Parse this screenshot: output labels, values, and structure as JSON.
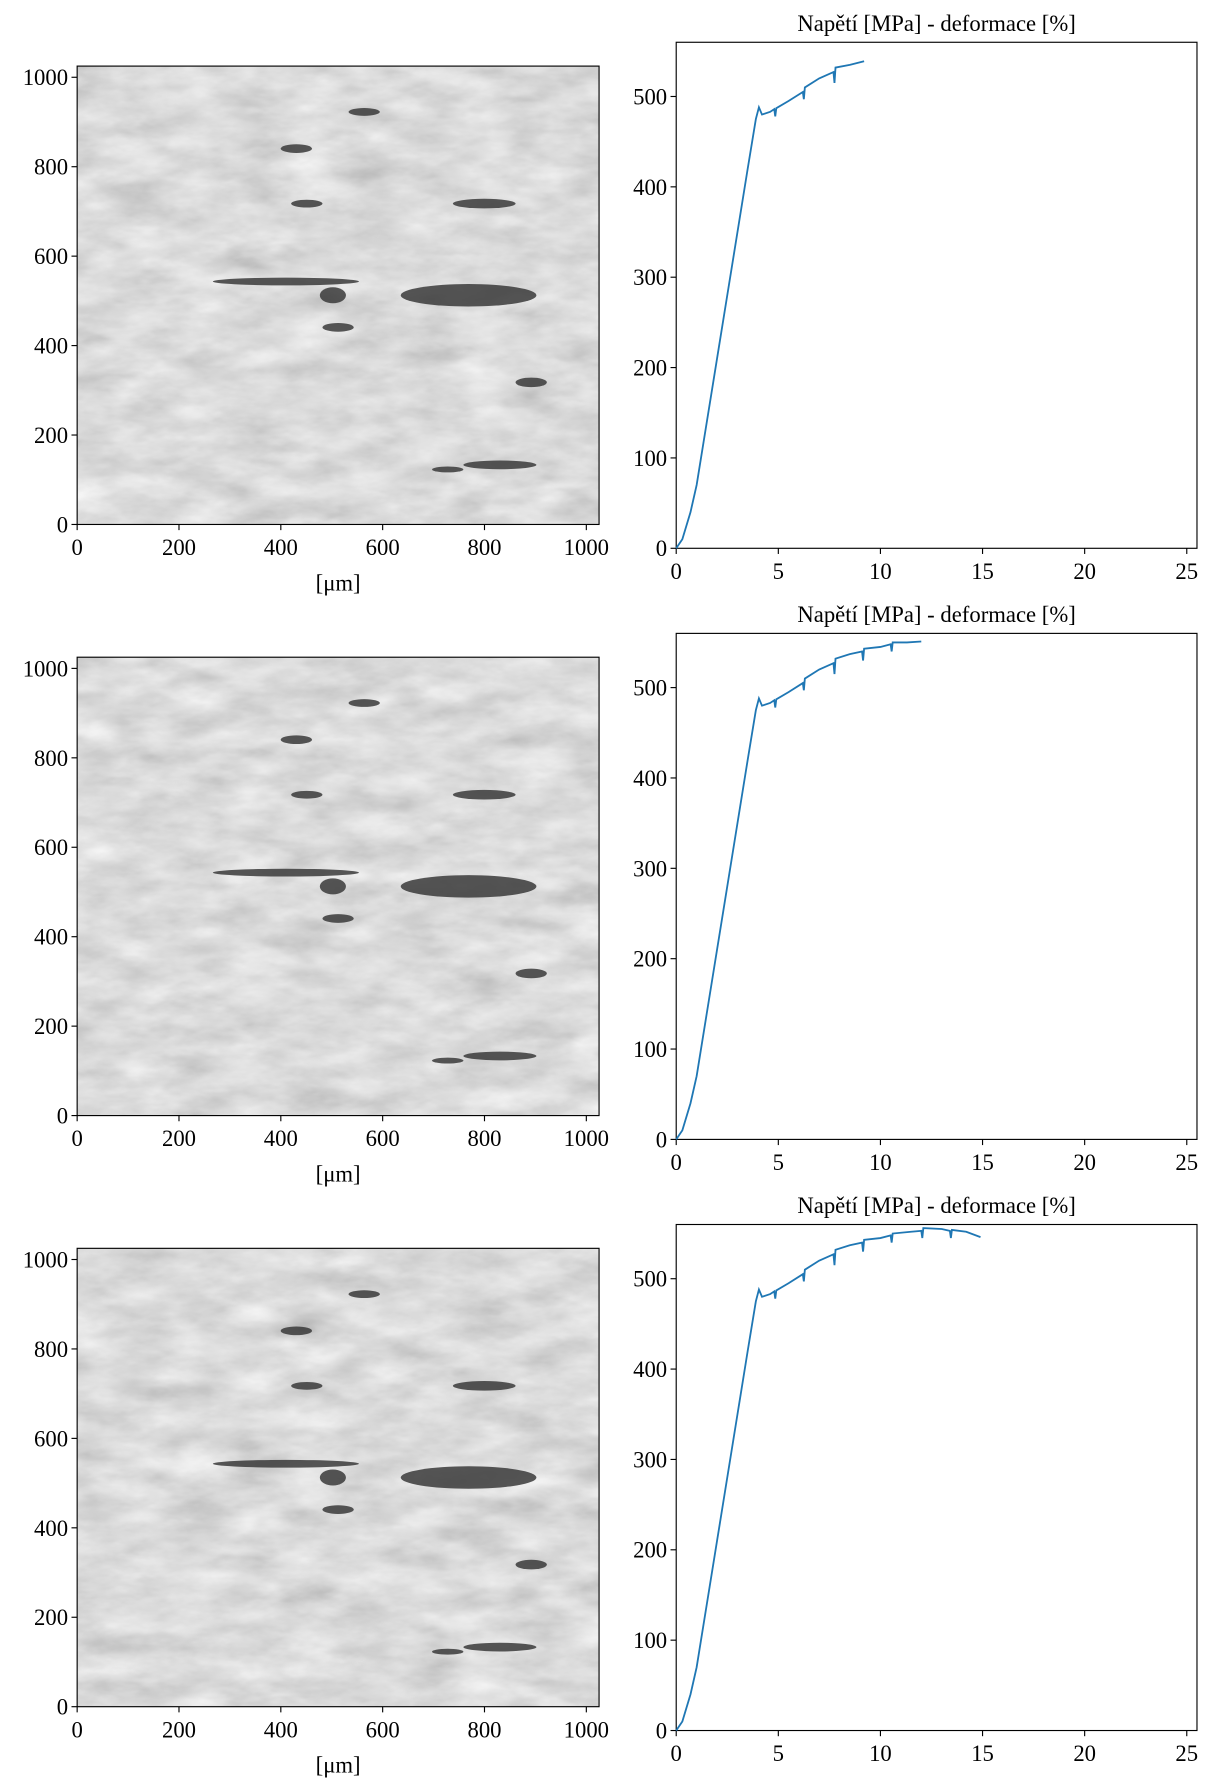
{
  "chart_data": [
    {
      "type": "image",
      "xlabel": "[μm]",
      "xlim": [
        0,
        1025
      ],
      "ylim": [
        0,
        1025
      ],
      "xticks": [
        0,
        200,
        400,
        600,
        800,
        1000
      ],
      "yticks": [
        0,
        200,
        400,
        600,
        800,
        1000
      ]
    },
    {
      "type": "line",
      "title": "Napětí [MPa] - deformace [%]",
      "x": [
        0,
        0.3,
        0.7,
        1,
        1.5,
        2,
        2.5,
        3,
        3.5,
        3.9,
        4.05,
        4.2,
        4.6,
        4.8,
        4.85,
        4.9,
        5.5,
        6.2,
        6.25,
        6.3,
        7,
        7.7,
        7.75,
        7.8,
        8.5,
        9.2
      ],
      "series": [
        {
          "color": "#1f77b4",
          "values": [
            0,
            10,
            40,
            70,
            140,
            210,
            280,
            350,
            420,
            475,
            488,
            480,
            483,
            486,
            478,
            487,
            495,
            505,
            497,
            510,
            520,
            527,
            515,
            532,
            535,
            539
          ]
        }
      ],
      "xlim": [
        0,
        25.5
      ],
      "ylim": [
        0,
        560
      ],
      "xticks": [
        0,
        5,
        10,
        15,
        20,
        25
      ],
      "yticks": [
        0,
        100,
        200,
        300,
        400,
        500
      ]
    },
    {
      "type": "image",
      "xlabel": "[μm]",
      "xlim": [
        0,
        1025
      ],
      "ylim": [
        0,
        1025
      ],
      "xticks": [
        0,
        200,
        400,
        600,
        800,
        1000
      ],
      "yticks": [
        0,
        200,
        400,
        600,
        800,
        1000
      ]
    },
    {
      "type": "line",
      "title": "Napětí [MPa] - deformace [%]",
      "x": [
        0,
        0.3,
        0.7,
        1,
        1.5,
        2,
        2.5,
        3,
        3.5,
        3.9,
        4.05,
        4.2,
        4.6,
        4.8,
        4.85,
        4.9,
        5.5,
        6.2,
        6.25,
        6.3,
        7,
        7.7,
        7.75,
        7.8,
        8.5,
        9.1,
        9.15,
        9.2,
        10,
        10.5,
        10.55,
        10.6,
        11.3,
        12
      ],
      "series": [
        {
          "color": "#1f77b4",
          "values": [
            0,
            10,
            40,
            70,
            140,
            210,
            280,
            350,
            420,
            475,
            488,
            480,
            483,
            486,
            478,
            487,
            495,
            505,
            497,
            510,
            520,
            527,
            515,
            532,
            537,
            540,
            530,
            543,
            545,
            548,
            540,
            550,
            550,
            551
          ]
        }
      ],
      "xlim": [
        0,
        25.5
      ],
      "ylim": [
        0,
        560
      ],
      "xticks": [
        0,
        5,
        10,
        15,
        20,
        25
      ],
      "yticks": [
        0,
        100,
        200,
        300,
        400,
        500
      ]
    },
    {
      "type": "image",
      "xlabel": "[μm]",
      "xlim": [
        0,
        1025
      ],
      "ylim": [
        0,
        1025
      ],
      "xticks": [
        0,
        200,
        400,
        600,
        800,
        1000
      ],
      "yticks": [
        0,
        200,
        400,
        600,
        800,
        1000
      ]
    },
    {
      "type": "line",
      "title": "Napětí [MPa] - deformace [%]",
      "x": [
        0,
        0.3,
        0.7,
        1,
        1.5,
        2,
        2.5,
        3,
        3.5,
        3.9,
        4.05,
        4.2,
        4.6,
        4.8,
        4.85,
        4.9,
        5.5,
        6.2,
        6.25,
        6.3,
        7,
        7.7,
        7.75,
        7.8,
        8.5,
        9.1,
        9.15,
        9.2,
        10,
        10.5,
        10.55,
        10.6,
        11.5,
        12,
        12.05,
        12.1,
        13,
        13.4,
        13.45,
        13.5,
        14.2,
        14.9
      ],
      "series": [
        {
          "color": "#1f77b4",
          "values": [
            0,
            10,
            40,
            70,
            140,
            210,
            280,
            350,
            420,
            475,
            488,
            480,
            483,
            486,
            478,
            487,
            495,
            505,
            497,
            510,
            520,
            527,
            515,
            532,
            537,
            540,
            530,
            543,
            545,
            548,
            540,
            550,
            552,
            553,
            545,
            556,
            555,
            553,
            545,
            554,
            552,
            546
          ]
        }
      ],
      "xlim": [
        0,
        25.5
      ],
      "ylim": [
        0,
        560
      ],
      "xticks": [
        0,
        5,
        10,
        15,
        20,
        25
      ],
      "yticks": [
        0,
        100,
        200,
        300,
        400,
        500
      ]
    }
  ]
}
